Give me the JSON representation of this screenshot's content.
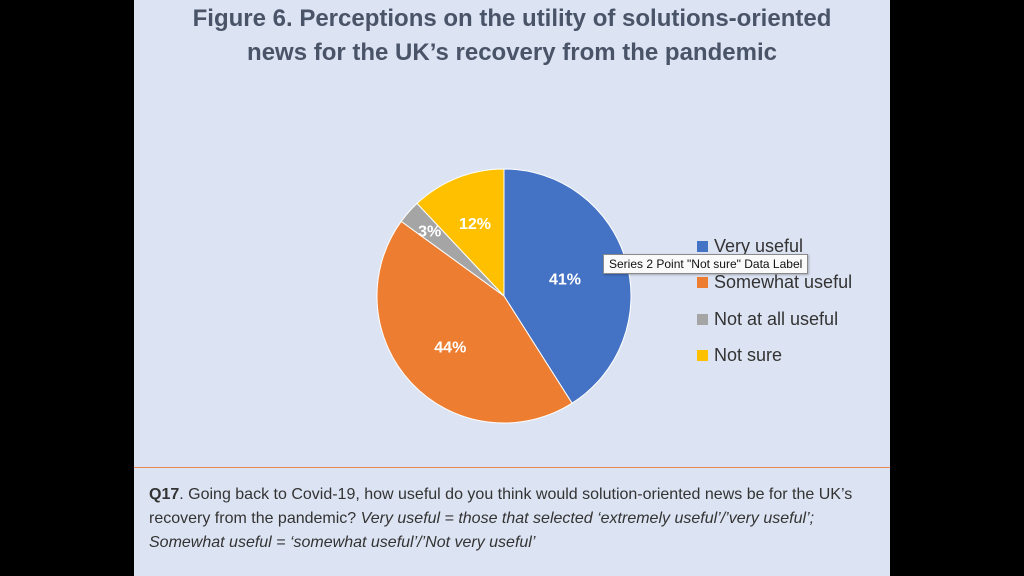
{
  "title": "Figure 6. Perceptions on the utility of solutions-oriented news for the UK’s recovery from the pandemic",
  "tooltip": "Series 2 Point \"Not sure\" Data Label",
  "question": {
    "id": "Q17",
    "text": ". Going back to Covid-19, how useful do you think would solution-oriented news be for the UK’s recovery from the pandemic?",
    "note": "Very useful = those that selected ‘extremely useful’/’very useful’; Somewhat useful = ‘somewhat useful’/’Not very useful’"
  },
  "colors": {
    "very_useful": "#4472c4",
    "somewhat_useful": "#ed7d31",
    "not_at_all_useful": "#a5a5a5",
    "not_sure": "#ffc000"
  },
  "chart_data": {
    "type": "pie",
    "title": "Figure 6. Perceptions on the utility of solutions-oriented news for the UK’s recovery from the pandemic",
    "categories": [
      "Very useful",
      "Somewhat useful",
      "Not at all useful",
      "Not sure"
    ],
    "values": [
      41,
      44,
      3,
      12
    ],
    "data_labels": [
      "41%",
      "44%",
      "3%",
      "12%"
    ],
    "colors": [
      "#4472c4",
      "#ed7d31",
      "#a5a5a5",
      "#ffc000"
    ],
    "legend_position": "right"
  }
}
